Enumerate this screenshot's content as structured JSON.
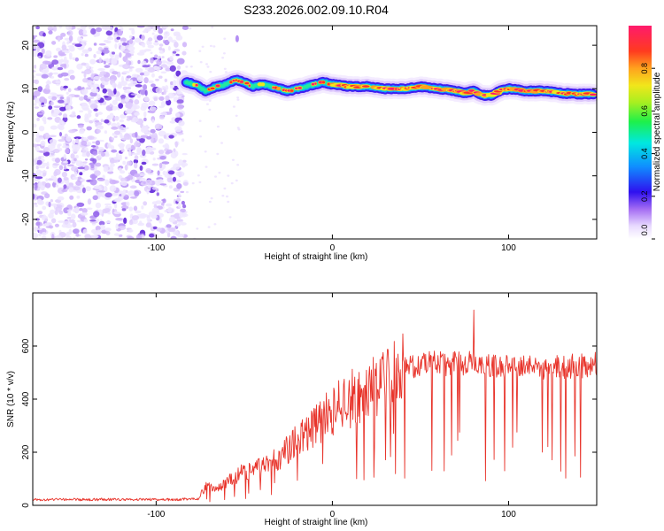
{
  "title": "S233.2026.002.09.10.R04",
  "chart_data": [
    {
      "type": "heatmap",
      "title": "S233.2026.002.09.10.R04",
      "xlabel": "Height of straight line (km)",
      "ylabel": "Frequency (Hz)",
      "xlim": [
        -170,
        150
      ],
      "ylim": [
        -24.5,
        24.5
      ],
      "xticks": [
        -100,
        0,
        100
      ],
      "yticks": [
        -20,
        -10,
        0,
        10,
        20
      ],
      "noise_region_x": [
        -170,
        -83
      ],
      "ridge": {
        "x": [
          -83,
          -78,
          -72,
          -66,
          -60,
          -55,
          -50,
          -45,
          -40,
          -35,
          -30,
          -25,
          -20,
          -15,
          -10,
          -5,
          0,
          10,
          20,
          30,
          40,
          50,
          60,
          70,
          75,
          80,
          85,
          90,
          95,
          100,
          110,
          120,
          130,
          140,
          148
        ],
        "frequency": [
          11.5,
          11,
          9.5,
          10.5,
          11,
          12,
          11.5,
          10.5,
          11,
          10.5,
          10,
          9.5,
          10,
          10.5,
          11,
          11.5,
          11,
          10.5,
          10.5,
          10,
          10,
          10.5,
          10,
          9.5,
          9,
          9.5,
          8.5,
          8.5,
          9.5,
          10,
          9.5,
          9.5,
          9,
          8.8,
          8.8
        ]
      },
      "colorbar": {
        "label": "Normalized spectral amplitude",
        "range": [
          0,
          1
        ],
        "ticks": [
          0.0,
          0.2,
          0.4,
          0.6,
          0.8
        ],
        "tick_labels": [
          "0.0",
          "0.2",
          "0.4",
          "0.6",
          "0.8"
        ]
      }
    },
    {
      "type": "line",
      "xlabel": "Height of straight line (km)",
      "ylabel": "SNR (10 * v/v)",
      "xlim": [
        -170,
        150
      ],
      "ylim": [
        0,
        800
      ],
      "xticks": [
        -100,
        0,
        100
      ],
      "yticks": [
        0,
        200,
        400,
        600
      ],
      "series": [
        {
          "name": "SNR",
          "color": "#e8342b",
          "envelope": {
            "x": [
              -170,
              -140,
              -110,
              -90,
              -76,
              -72,
              -65,
              -55,
              -45,
              -35,
              -25,
              -15,
              -5,
              5,
              15,
              25,
              35,
              45,
              60,
              75,
              85,
              95,
              110,
              125,
              140,
              150
            ],
            "y": [
              22,
              22,
              22,
              22,
              24,
              70,
              60,
              110,
              140,
              160,
              210,
              270,
              330,
              380,
              420,
              450,
              495,
              525,
              535,
              535,
              530,
              520,
              525,
              520,
              525,
              530
            ]
          }
        }
      ]
    }
  ]
}
